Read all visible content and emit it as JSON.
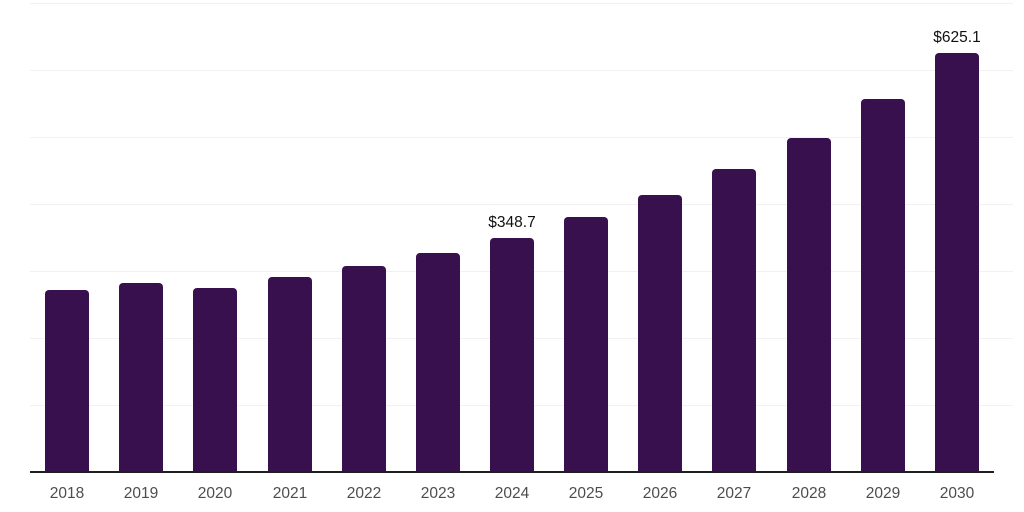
{
  "chart_data": {
    "type": "bar",
    "title": "",
    "xlabel": "",
    "ylabel": "",
    "categories": [
      "2018",
      "2019",
      "2020",
      "2021",
      "2022",
      "2023",
      "2024",
      "2025",
      "2026",
      "2027",
      "2028",
      "2029",
      "2030"
    ],
    "values": [
      272,
      282,
      275,
      291,
      308,
      327,
      348.7,
      380,
      414,
      452,
      498,
      557,
      625.1
    ],
    "value_labels": [
      {
        "category": "2024",
        "text": "$348.7"
      },
      {
        "category": "2030",
        "text": "$625.1"
      }
    ],
    "ylim": [
      0,
      700
    ],
    "grid_step": 100,
    "grid": "horizontal-only",
    "legend_position": "none",
    "colors": {
      "bar": "#38104e",
      "grid": "#f1f1f3",
      "axis_line": "#1f1f1f",
      "tick_label": "#4d4d4d",
      "value_label": "#111111",
      "background": "#ffffff"
    }
  }
}
